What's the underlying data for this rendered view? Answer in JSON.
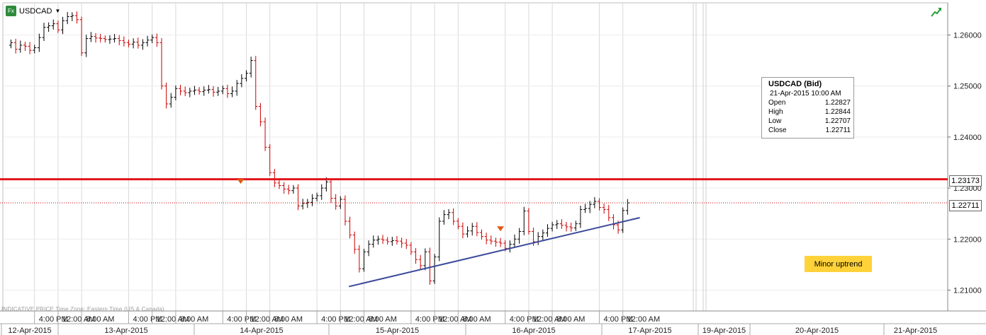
{
  "symbol": {
    "fx_badge": "Fx",
    "name": "USDCAD",
    "dropdown": "▼"
  },
  "indicative": "INDICATIVE PRICE   Time Zone: Eastern Time (US & Canada)",
  "tooltip": {
    "title": "USDCAD (Bid)",
    "time": "21-Apr-2015 10:00 AM",
    "rows": [
      {
        "label": "Open",
        "value": "1.22827"
      },
      {
        "label": "High",
        "value": "1.22844"
      },
      {
        "label": "Low",
        "value": "1.22707"
      },
      {
        "label": "Close",
        "value": "1.22711"
      }
    ]
  },
  "annotation": "Minor uptrend",
  "price_labels": {
    "resistance": "1.23173",
    "last": "1.22711"
  },
  "colors": {
    "up": "#000000",
    "down": "#cc0000",
    "resistance": "#e0161b",
    "trend": "#3b4a9a",
    "note": "#ffd23a",
    "marker": "#e05a14",
    "grid": "#d9d9d9"
  },
  "chart_data": {
    "type": "ohlc",
    "title": "",
    "series_name": "USDCAD (Bid)",
    "y_ticks": [
      1.21,
      1.22,
      1.23,
      1.24,
      1.25,
      1.26
    ],
    "y_tick_labels": [
      "1.21000",
      "1.22000",
      "1.23000",
      "1.24000",
      "1.25000",
      "1.26000"
    ],
    "ylim": [
      1.2075,
      1.2655
    ],
    "time_ticks": [
      {
        "label": "4:00 PM",
        "x": 0.5
      },
      {
        "label": "12:00 AM",
        "x": 1
      },
      {
        "label": "8:00 AM",
        "x": 1.5
      },
      {
        "label": "4:00 PM",
        "x": 2.5
      },
      {
        "label": "12:00 AM",
        "x": 3
      },
      {
        "label": "8:00 AM",
        "x": 3.5
      },
      {
        "label": "4:00 PM",
        "x": 4.5
      },
      {
        "label": "12:00 AM",
        "x": 5
      },
      {
        "label": "8:00 AM",
        "x": 5.5
      },
      {
        "label": "4:00 PM",
        "x": 6.5
      },
      {
        "label": "12:00 AM",
        "x": 7
      },
      {
        "label": "8:00 AM",
        "x": 7.5
      },
      {
        "label": "4:00 PM",
        "x": 8.5
      },
      {
        "label": "12:00 AM",
        "x": 9
      },
      {
        "label": "8:00 AM",
        "x": 9.5
      },
      {
        "label": "4:00 PM",
        "x": 10.5
      },
      {
        "label": "12:00 AM",
        "x": 11
      },
      {
        "label": "8:00 AM",
        "x": 11.5
      },
      {
        "label": "4:00 PM",
        "x": 12.5
      },
      {
        "label": "12:00 AM",
        "x": 13
      }
    ],
    "date_labels": [
      "12-Apr-2015",
      "13-Apr-2015",
      "14-Apr-2015",
      "15-Apr-2015",
      "16-Apr-2015",
      "17-Apr-2015",
      "19-Apr-2015",
      "20-Apr-2015",
      "21-Apr-2015"
    ],
    "closes": [
      1.2585,
      1.2572,
      1.258,
      1.2578,
      1.257,
      1.2575,
      1.2595,
      1.2615,
      1.2618,
      1.2622,
      1.261,
      1.2628,
      1.2636,
      1.2638,
      1.263,
      1.2565,
      1.2593,
      1.2597,
      1.2594,
      1.2593,
      1.2591,
      1.2592,
      1.2593,
      1.2589,
      1.2585,
      1.2582,
      1.2586,
      1.258,
      1.2585,
      1.259,
      1.2595,
      1.2585,
      1.25,
      1.2465,
      1.2478,
      1.2495,
      1.249,
      1.2487,
      1.249,
      1.2492,
      1.2489,
      1.2492,
      1.2493,
      1.2488,
      1.249,
      1.2495,
      1.2485,
      1.249,
      1.2505,
      1.2515,
      1.2525,
      1.255,
      1.246,
      1.243,
      1.238,
      1.233,
      1.231,
      1.2305,
      1.2298,
      1.2295,
      1.23,
      1.2265,
      1.227,
      1.2272,
      1.228,
      1.2285,
      1.23,
      1.2312,
      1.228,
      1.2265,
      1.2278,
      1.2235,
      1.2208,
      1.218,
      1.2142,
      1.2175,
      1.219,
      1.2198,
      1.22,
      1.2198,
      1.2195,
      1.2197,
      1.2196,
      1.2192,
      1.2188,
      1.2175,
      1.216,
      1.2148,
      1.2175,
      1.2118,
      1.2165,
      1.2235,
      1.2248,
      1.2252,
      1.2235,
      1.2225,
      1.221,
      1.2216,
      1.2225,
      1.2213,
      1.2205,
      1.2198,
      1.2196,
      1.2194,
      1.2192,
      1.2182,
      1.219,
      1.22,
      1.2215,
      1.2255,
      1.2215,
      1.2195,
      1.2205,
      1.2212,
      1.2221,
      1.2228,
      1.223,
      1.2227,
      1.2224,
      1.2222,
      1.223,
      1.2258,
      1.226,
      1.2268,
      1.2274,
      1.2262,
      1.2258,
      1.2242,
      1.2228,
      1.2218,
      1.2256,
      1.2271
    ],
    "overlays": {
      "resistance_level": 1.23173,
      "last_close": 1.22711,
      "trendline": [
        {
          "x": 7.18,
          "y": 1.2107
        },
        {
          "x": 13.36,
          "y": 1.2242
        }
      ],
      "markers": [
        {
          "x": 4.88,
          "y": 1.2318,
          "dir": "down"
        },
        {
          "x": 10.4,
          "y": 1.2225,
          "dir": "down"
        }
      ]
    }
  }
}
